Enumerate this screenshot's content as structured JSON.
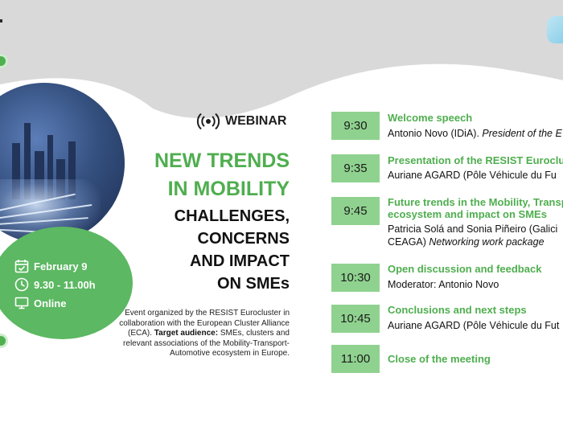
{
  "header": {
    "label": "WEBINAR",
    "icon": "broadcast-icon"
  },
  "title": {
    "green_lines": [
      "NEW TRENDS",
      "IN MOBILITY"
    ],
    "dark_lines": [
      "CHALLENGES,",
      "CONCERNS",
      "AND IMPACT",
      "ON SMEs"
    ]
  },
  "event_info": {
    "date": "February 9",
    "time": "9.30 - 11.00h",
    "location": "Online"
  },
  "organizer": {
    "text": "Event organized by the RESIST Eurocluster in collaboration with the European Cluster Alliance (ECA).",
    "audience_label": "Target audience:",
    "audience_text": "SMEs, clusters and relevant associations of the Mobility-Transport-Automotive ecosystem in Europe."
  },
  "agenda": [
    {
      "time": "9:30",
      "title": "Welcome speech",
      "desc_normal": "Antonio Novo (IDiA). ",
      "desc_italic": "President of the E"
    },
    {
      "time": "9:35",
      "title": "Presentation of the RESIST Euroclus",
      "desc_normal": "Auriane AGARD (Pôle Véhicule du Fu",
      "desc_italic": ""
    },
    {
      "time": "9:45",
      "title_lines": [
        "Future trends in the Mobility, Transp",
        "ecosystem and impact on SMEs"
      ],
      "desc_line1": "Patricia Solá and Sonia Piñeiro (Galici",
      "desc_normal": "CEAGA) ",
      "desc_italic": "Networking work package"
    },
    {
      "time": "10:30",
      "title": "Open discussion and feedback",
      "desc_normal": "Moderator: Antonio Novo",
      "desc_italic": ""
    },
    {
      "time": "10:45",
      "title": "Conclusions and next steps",
      "desc_normal": "Auriane AGARD (Pôle Véhicule du Fut",
      "desc_italic": ""
    },
    {
      "time": "11:00",
      "title": "Close of the meeting"
    }
  ],
  "colors": {
    "green": "#4fae4f",
    "light_green": "#8fd28f",
    "background": "#d9d9d9"
  }
}
